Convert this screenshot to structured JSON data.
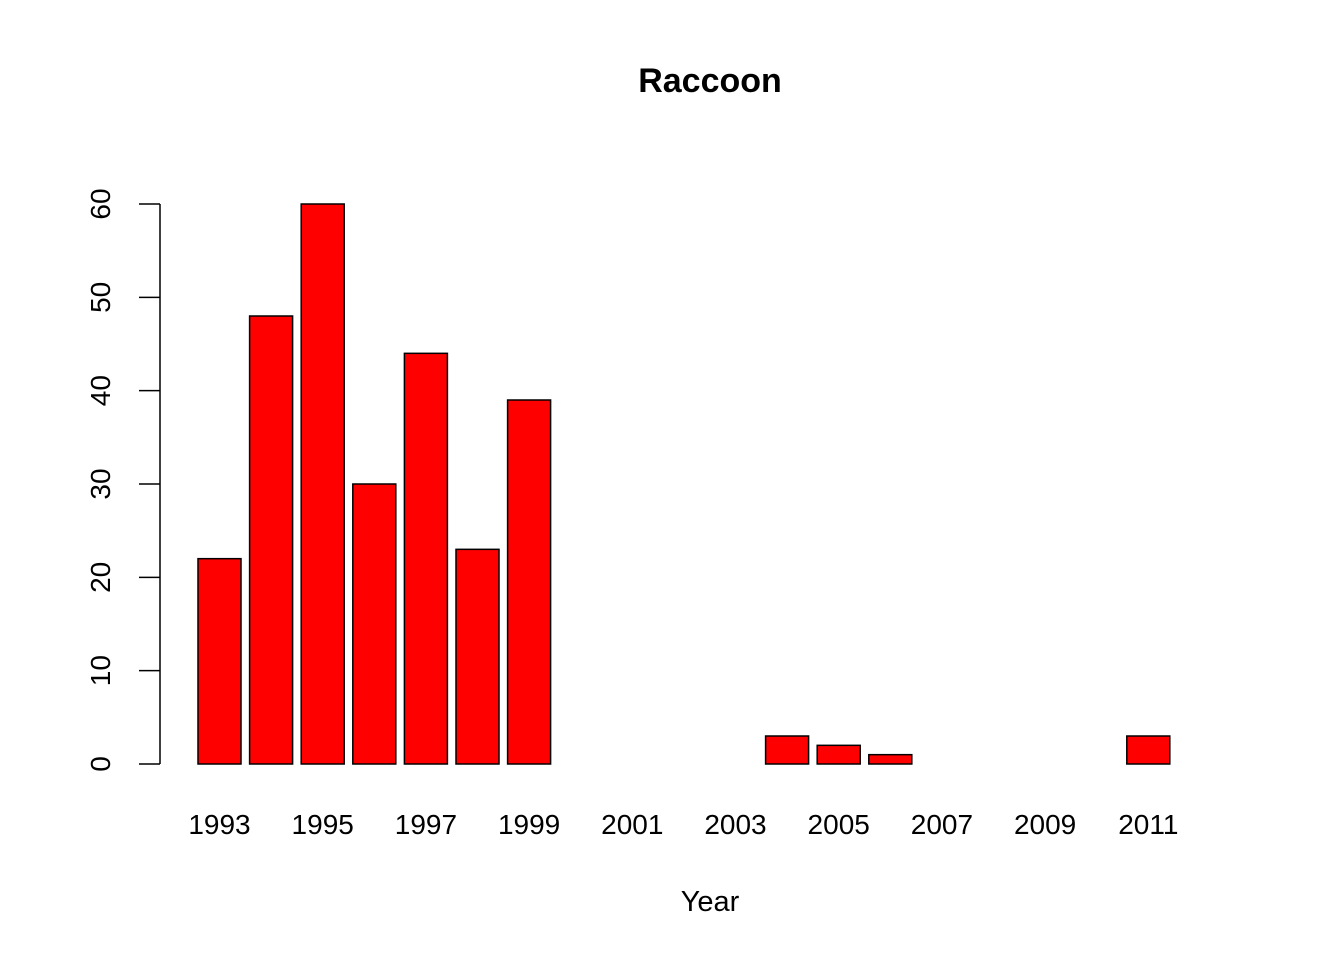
{
  "chart_data": {
    "type": "bar",
    "title": "Raccoon",
    "xlabel": "Year",
    "ylabel": "",
    "bar_color": "#ff0000",
    "outline_color": "#000000",
    "categories": [
      "1993",
      "1994",
      "1995",
      "1996",
      "1997",
      "1998",
      "1999",
      "2000",
      "2001",
      "2002",
      "2003",
      "2004",
      "2005",
      "2006",
      "2007",
      "2008",
      "2009",
      "2010",
      "2011"
    ],
    "values": [
      22,
      48,
      60,
      30,
      44,
      23,
      39,
      null,
      null,
      null,
      0,
      3,
      2,
      1,
      0,
      0,
      0,
      0,
      3
    ],
    "x_tick_labels": [
      "1993",
      "1995",
      "1997",
      "1999",
      "2001",
      "2003",
      "2005",
      "2007",
      "2009",
      "2011"
    ],
    "y_ticks": [
      0,
      10,
      20,
      30,
      40,
      50,
      60
    ],
    "ylim": [
      0,
      60
    ],
    "grid": false,
    "legend": "none"
  }
}
